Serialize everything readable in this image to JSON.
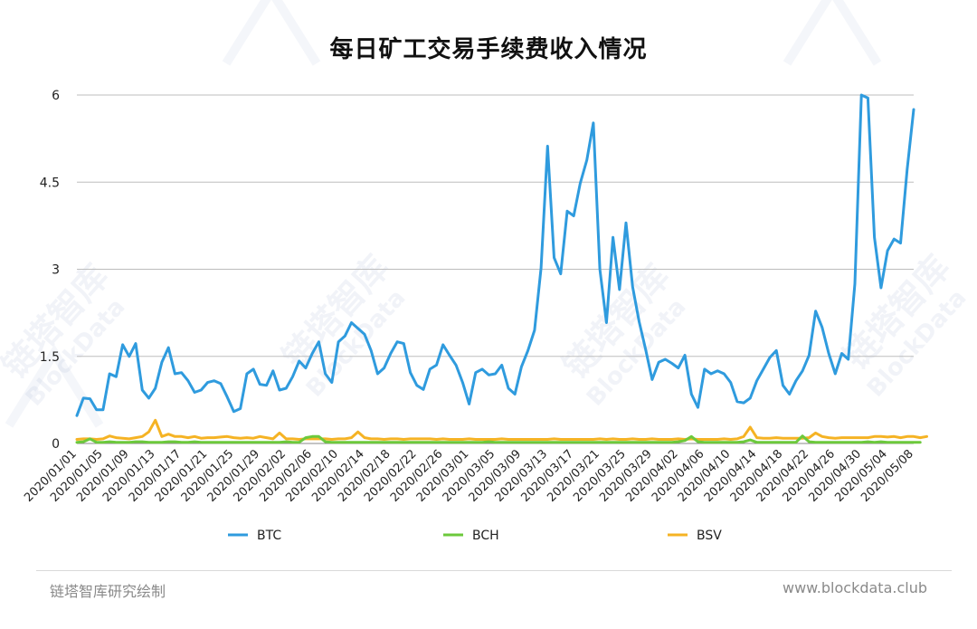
{
  "chart_data": {
    "type": "line",
    "title": "每日矿工交易手续费收入情况",
    "xlabel": "",
    "ylabel": "",
    "ylim": [
      0,
      6
    ],
    "yticks": [
      "0",
      "1.5",
      "3",
      "4.5",
      "6"
    ],
    "grid": true,
    "legend_position": "bottom",
    "x_tick_labels": [
      "2020/01/01",
      "2020/01/05",
      "2020/01/09",
      "2020/01/13",
      "2020/01/17",
      "2020/01/21",
      "2020/01/25",
      "2020/01/29",
      "2020/02/02",
      "2020/02/06",
      "2020/02/10",
      "2020/02/14",
      "2020/02/18",
      "2020/02/22",
      "2020/02/26",
      "2020/03/01",
      "2020/03/05",
      "2020/03/09",
      "2020/03/13",
      "2020/03/17",
      "2020/03/21",
      "2020/03/25",
      "2020/03/29",
      "2020/04/02",
      "2020/04/06",
      "2020/04/10",
      "2020/04/14",
      "2020/04/18",
      "2020/04/22",
      "2020/04/26",
      "2020/04/30",
      "2020/05/04",
      "2020/05/08"
    ],
    "series": [
      {
        "name": "BTC",
        "color": "#2f9bde",
        "values": [
          0.48,
          0.78,
          0.77,
          0.58,
          0.58,
          1.2,
          1.15,
          1.7,
          1.5,
          1.72,
          0.92,
          0.78,
          0.95,
          1.4,
          1.65,
          1.2,
          1.22,
          1.08,
          0.88,
          0.92,
          1.05,
          1.08,
          1.03,
          0.8,
          0.55,
          0.6,
          1.2,
          1.28,
          1.02,
          1.0,
          1.25,
          0.92,
          0.95,
          1.15,
          1.42,
          1.3,
          1.55,
          1.75,
          1.2,
          1.05,
          1.75,
          1.85,
          2.08,
          1.98,
          1.88,
          1.6,
          1.2,
          1.3,
          1.55,
          1.75,
          1.72,
          1.22,
          1.0,
          0.93,
          1.28,
          1.35,
          1.7,
          1.52,
          1.35,
          1.05,
          0.68,
          1.22,
          1.28,
          1.18,
          1.2,
          1.35,
          0.95,
          0.85,
          1.32,
          1.6,
          1.95,
          3.02,
          5.12,
          3.2,
          2.92,
          4.0,
          3.92,
          4.48,
          4.88,
          5.52,
          3.0,
          2.08,
          3.55,
          2.65,
          3.8,
          2.7,
          2.1,
          1.62,
          1.1,
          1.4,
          1.45,
          1.38,
          1.3,
          1.52,
          0.85,
          0.62,
          1.28,
          1.2,
          1.25,
          1.2,
          1.05,
          0.72,
          0.7,
          0.78,
          1.08,
          1.28,
          1.48,
          1.6,
          1.0,
          0.85,
          1.08,
          1.25,
          1.52,
          2.28,
          2.0,
          1.55,
          1.2,
          1.55,
          1.45,
          2.75,
          6.0,
          5.95,
          3.55,
          2.68,
          3.32,
          3.52,
          3.45,
          4.72,
          5.75
        ]
      },
      {
        "name": "BCH",
        "color": "#6cc93c",
        "values": [
          0.02,
          0.03,
          0.08,
          0.02,
          0.02,
          0.03,
          0.02,
          0.02,
          0.02,
          0.03,
          0.03,
          0.02,
          0.02,
          0.02,
          0.03,
          0.03,
          0.02,
          0.02,
          0.03,
          0.02,
          0.02,
          0.02,
          0.02,
          0.02,
          0.02,
          0.02,
          0.02,
          0.02,
          0.02,
          0.02,
          0.02,
          0.02,
          0.03,
          0.02,
          0.02,
          0.1,
          0.12,
          0.12,
          0.03,
          0.02,
          0.02,
          0.02,
          0.02,
          0.02,
          0.02,
          0.02,
          0.02,
          0.02,
          0.02,
          0.02,
          0.02,
          0.02,
          0.02,
          0.02,
          0.02,
          0.02,
          0.02,
          0.02,
          0.02,
          0.02,
          0.02,
          0.02,
          0.02,
          0.03,
          0.02,
          0.02,
          0.02,
          0.02,
          0.02,
          0.02,
          0.02,
          0.02,
          0.02,
          0.02,
          0.02,
          0.02,
          0.02,
          0.02,
          0.02,
          0.02,
          0.02,
          0.02,
          0.02,
          0.02,
          0.02,
          0.02,
          0.02,
          0.02,
          0.02,
          0.02,
          0.02,
          0.02,
          0.03,
          0.05,
          0.12,
          0.03,
          0.02,
          0.02,
          0.02,
          0.02,
          0.02,
          0.02,
          0.03,
          0.06,
          0.02,
          0.02,
          0.02,
          0.02,
          0.02,
          0.02,
          0.02,
          0.13,
          0.03,
          0.02,
          0.02,
          0.02,
          0.02,
          0.02,
          0.02,
          0.02,
          0.02,
          0.03,
          0.02,
          0.03,
          0.02,
          0.02,
          0.02,
          0.02,
          0.02,
          0.02
        ]
      },
      {
        "name": "BSV",
        "color": "#f5b324",
        "values": [
          0.07,
          0.08,
          0.08,
          0.07,
          0.08,
          0.13,
          0.1,
          0.09,
          0.08,
          0.1,
          0.12,
          0.2,
          0.4,
          0.12,
          0.16,
          0.12,
          0.12,
          0.1,
          0.12,
          0.09,
          0.1,
          0.1,
          0.11,
          0.12,
          0.1,
          0.09,
          0.1,
          0.09,
          0.12,
          0.1,
          0.08,
          0.18,
          0.08,
          0.08,
          0.07,
          0.08,
          0.08,
          0.08,
          0.08,
          0.07,
          0.08,
          0.08,
          0.1,
          0.2,
          0.1,
          0.08,
          0.08,
          0.07,
          0.08,
          0.08,
          0.07,
          0.08,
          0.08,
          0.08,
          0.08,
          0.07,
          0.08,
          0.07,
          0.07,
          0.07,
          0.08,
          0.07,
          0.07,
          0.07,
          0.07,
          0.08,
          0.07,
          0.07,
          0.07,
          0.07,
          0.07,
          0.07,
          0.07,
          0.08,
          0.07,
          0.07,
          0.07,
          0.07,
          0.07,
          0.07,
          0.08,
          0.07,
          0.08,
          0.07,
          0.07,
          0.08,
          0.07,
          0.07,
          0.08,
          0.07,
          0.07,
          0.07,
          0.08,
          0.07,
          0.08,
          0.07,
          0.07,
          0.07,
          0.07,
          0.08,
          0.07,
          0.08,
          0.12,
          0.28,
          0.1,
          0.09,
          0.09,
          0.1,
          0.09,
          0.09,
          0.09,
          0.09,
          0.1,
          0.18,
          0.12,
          0.1,
          0.09,
          0.1,
          0.1,
          0.1,
          0.1,
          0.1,
          0.12,
          0.12,
          0.11,
          0.12,
          0.1,
          0.12,
          0.12,
          0.1,
          0.12
        ]
      }
    ]
  },
  "footer": {
    "left_text": "链塔智库研究绘制",
    "right_text": "www.blockdata.club"
  },
  "watermark": {
    "cn_text": "链塔智库",
    "en_text": "BlockData"
  }
}
